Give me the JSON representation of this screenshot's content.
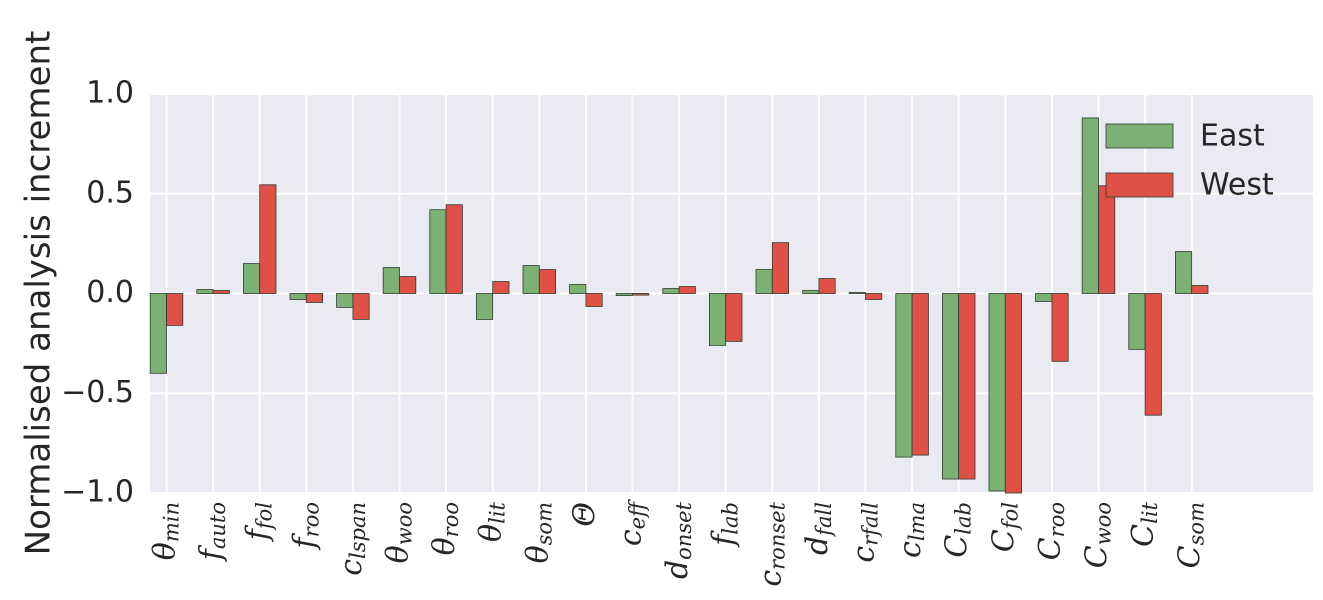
{
  "chart_data": {
    "type": "bar",
    "ylabel": "Normalised analysis increment",
    "ylim": [
      -1.0,
      1.0
    ],
    "yticks": [
      {
        "value": 1.0,
        "label": "1.0"
      },
      {
        "value": 0.5,
        "label": "0.5"
      },
      {
        "value": 0.0,
        "label": "0.0"
      },
      {
        "value": -0.5,
        "label": "−0.5"
      },
      {
        "value": -1.0,
        "label": "−1.0"
      }
    ],
    "grid": true,
    "legend_position": "top-right",
    "categories": [
      {
        "base": "θ",
        "sub": "min"
      },
      {
        "base": "f",
        "sub": "auto"
      },
      {
        "base": "f",
        "sub": "fol"
      },
      {
        "base": "f",
        "sub": "roo"
      },
      {
        "base": "c",
        "sub": "lspan"
      },
      {
        "base": "θ",
        "sub": "woo"
      },
      {
        "base": "θ",
        "sub": "roo"
      },
      {
        "base": "θ",
        "sub": "lit"
      },
      {
        "base": "θ",
        "sub": "som"
      },
      {
        "base": "Θ",
        "sub": ""
      },
      {
        "base": "c",
        "sub": "eff"
      },
      {
        "base": "d",
        "sub": "onset"
      },
      {
        "base": "f",
        "sub": "lab"
      },
      {
        "base": "c",
        "sub": "ronset"
      },
      {
        "base": "d",
        "sub": "fall"
      },
      {
        "base": "c",
        "sub": "rfall"
      },
      {
        "base": "c",
        "sub": "lma"
      },
      {
        "base": "C",
        "sub": "lab"
      },
      {
        "base": "C",
        "sub": "fol"
      },
      {
        "base": "C",
        "sub": "roo"
      },
      {
        "base": "C",
        "sub": "woo"
      },
      {
        "base": "C",
        "sub": "lit"
      },
      {
        "base": "C",
        "sub": "som"
      }
    ],
    "series": [
      {
        "name": "East",
        "color": "#7bb274",
        "values": [
          -0.4,
          0.02,
          0.15,
          -0.03,
          -0.07,
          0.13,
          0.42,
          -0.13,
          0.14,
          0.045,
          -0.01,
          0.025,
          -0.26,
          0.12,
          0.015,
          0.005,
          -0.82,
          -0.93,
          -0.99,
          -0.04,
          0.88,
          -0.28,
          0.21
        ]
      },
      {
        "name": "West",
        "color": "#e05046",
        "values": [
          -0.16,
          0.015,
          0.545,
          -0.045,
          -0.13,
          0.085,
          0.445,
          0.06,
          0.12,
          -0.065,
          -0.008,
          0.035,
          -0.24,
          0.255,
          0.075,
          -0.03,
          -0.81,
          -0.93,
          -1.0,
          -0.34,
          0.54,
          -0.61,
          0.04
        ]
      }
    ]
  }
}
